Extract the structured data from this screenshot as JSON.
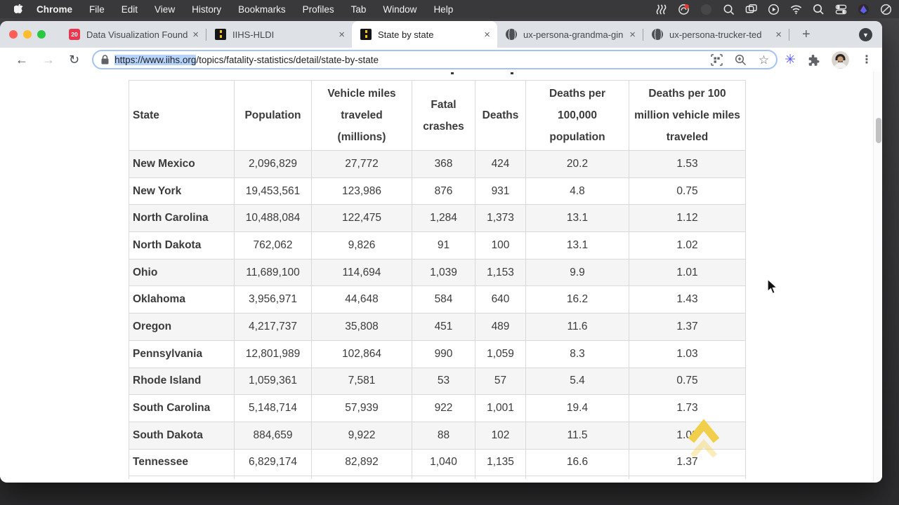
{
  "menubar": {
    "app_name": "Chrome",
    "items": [
      "File",
      "Edit",
      "View",
      "History",
      "Bookmarks",
      "Profiles",
      "Tab",
      "Window",
      "Help"
    ],
    "status_icons": [
      "wave-lines",
      "creative-cloud-notification",
      "dimmed-app",
      "zoom-magnifier",
      "displays",
      "play-circle",
      "wifi",
      "spotlight-search",
      "control-center",
      "raycast",
      "do-not-disturb"
    ]
  },
  "tabs": [
    {
      "label": "Data Visualization Founda",
      "favicon": "calendar-20",
      "favicon_text": "20",
      "active": false
    },
    {
      "label": "IIHS-HLDI",
      "favicon": "iihs-road",
      "active": false
    },
    {
      "label": "State by state",
      "favicon": "iihs-road",
      "active": true
    },
    {
      "label": "ux-persona-grandma-gin",
      "favicon": "globe",
      "active": false
    },
    {
      "label": "ux-persona-trucker-ted",
      "favicon": "globe",
      "active": false
    }
  ],
  "toolbar": {
    "back_glyph": "←",
    "forward_glyph": "→",
    "reload_glyph": "↻",
    "url_selected": "https://www.iihs.org",
    "url_rest": "/topics/fatality-statistics/detail/state-by-state",
    "bookmark_star_glyph": "☆",
    "extension_flower_glyph": "✳",
    "menu_glyph": "⋮",
    "new_tab_glyph": "+",
    "tab_search_glyph": "▼",
    "close_tab_glyph": "×"
  },
  "table": {
    "headers": [
      "State",
      "Population",
      "Vehicle miles traveled (millions)",
      "Fatal crashes",
      "Deaths",
      "Deaths per 100,000 population",
      "Deaths per 100 million vehicle miles traveled"
    ],
    "rows": [
      [
        "New Mexico",
        "2,096,829",
        "27,772",
        "368",
        "424",
        "20.2",
        "1.53"
      ],
      [
        "New York",
        "19,453,561",
        "123,986",
        "876",
        "931",
        "4.8",
        "0.75"
      ],
      [
        "North Carolina",
        "10,488,084",
        "122,475",
        "1,284",
        "1,373",
        "13.1",
        "1.12"
      ],
      [
        "North Dakota",
        "762,062",
        "9,826",
        "91",
        "100",
        "13.1",
        "1.02"
      ],
      [
        "Ohio",
        "11,689,100",
        "114,694",
        "1,039",
        "1,153",
        "9.9",
        "1.01"
      ],
      [
        "Oklahoma",
        "3,956,971",
        "44,648",
        "584",
        "640",
        "16.2",
        "1.43"
      ],
      [
        "Oregon",
        "4,217,737",
        "35,808",
        "451",
        "489",
        "11.6",
        "1.37"
      ],
      [
        "Pennsylvania",
        "12,801,989",
        "102,864",
        "990",
        "1,059",
        "8.3",
        "1.03"
      ],
      [
        "Rhode Island",
        "1,059,361",
        "7,581",
        "53",
        "57",
        "5.4",
        "0.75"
      ],
      [
        "South Carolina",
        "5,148,714",
        "57,939",
        "922",
        "1,001",
        "19.4",
        "1.73"
      ],
      [
        "South Dakota",
        "884,659",
        "9,922",
        "88",
        "102",
        "11.5",
        "1.03"
      ],
      [
        "Tennessee",
        "6,829,174",
        "82,892",
        "1,040",
        "1,135",
        "16.6",
        "1.37"
      ]
    ]
  },
  "colors": {
    "menubar_bg": "#39393b",
    "tabstrip_bg": "#dee1e6",
    "accent_focus_ring": "#a4c2f4",
    "url_selection": "#b6d3fb",
    "row_stripe": "#f5f5f5",
    "iihs_yellow": "#f2cf4a",
    "traffic_red": "#ff5f57",
    "traffic_yellow": "#febc2e",
    "traffic_green": "#28c840"
  }
}
